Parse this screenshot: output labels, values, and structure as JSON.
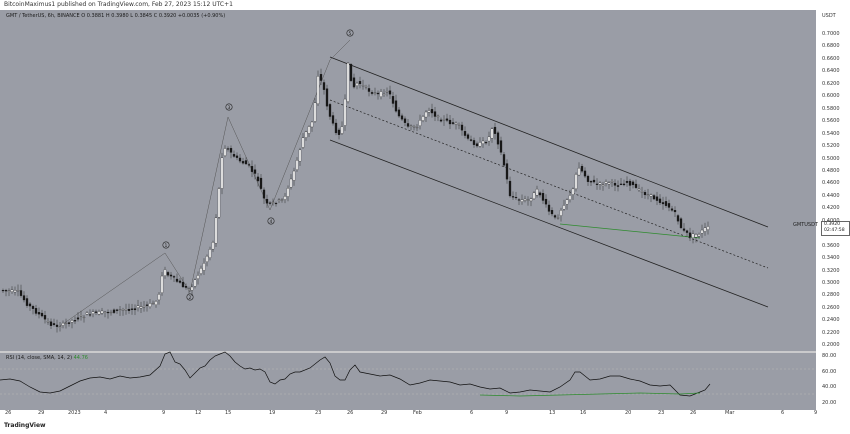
{
  "header": {
    "text": "BitcoinMaximus1 published on TradingView.com, Feb 27, 2023 15:12 UTC+1"
  },
  "legend": {
    "symbol": "GMT / TetherUS, 6h, BINANCE",
    "ohlc": "O 0.3881  H 0.3980  L 0.3845  C 0.3920  +0.0035 (+0.90%)"
  },
  "rsi_legend": {
    "text": "RSI (14, close, SMA, 14, 2)",
    "value": "44.76"
  },
  "axis": {
    "currency": "USDT",
    "price_labels": [
      "0.7000",
      "0.6800",
      "0.6600",
      "0.6400",
      "0.6200",
      "0.6000",
      "0.5800",
      "0.5600",
      "0.5400",
      "0.5200",
      "0.5000",
      "0.4800",
      "0.4600",
      "0.4400",
      "0.4200",
      "0.4000",
      "0.3800",
      "0.3600",
      "0.3400",
      "0.3200",
      "0.3000",
      "0.2800",
      "0.2600",
      "0.2400",
      "0.2200",
      "0.2000"
    ],
    "rsi_labels": [
      "80.00",
      "60.00",
      "40.00",
      "20.00"
    ],
    "x_labels": [
      "26",
      "29",
      "2023",
      "4",
      "9",
      "12",
      "15",
      "19",
      "23",
      "26",
      "29",
      "Feb",
      "6",
      "9",
      "13",
      "16",
      "20",
      "23",
      "26",
      "Mar",
      "6",
      "9"
    ]
  },
  "price_tag": {
    "symbol": "GMTUSDT",
    "price": "0.3920",
    "countdown": "02:47:58"
  },
  "wave_labels": [
    "1",
    "2",
    "3",
    "4",
    "5"
  ],
  "branding": {
    "logo": "TradingView"
  },
  "colors": {
    "plot_bg": "#9a9da6",
    "candle_up": "#ffffff",
    "candle_down": "#1a1a1a",
    "support": "#2e8b2e",
    "channel": "#222222"
  }
}
